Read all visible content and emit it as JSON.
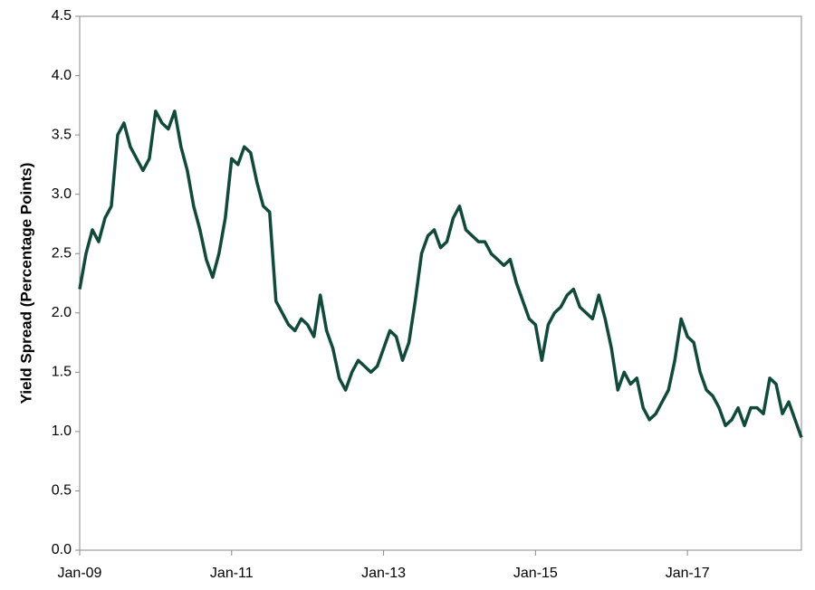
{
  "chart_data": {
    "type": "line",
    "y_label": "Yield Spread (Percentage Points)",
    "color": "#0f4a3b",
    "x": [
      "2009-01",
      "2009-02",
      "2009-03",
      "2009-04",
      "2009-05",
      "2009-06",
      "2009-07",
      "2009-08",
      "2009-09",
      "2009-10",
      "2009-11",
      "2009-12",
      "2010-01",
      "2010-02",
      "2010-03",
      "2010-04",
      "2010-05",
      "2010-06",
      "2010-07",
      "2010-08",
      "2010-09",
      "2010-10",
      "2010-11",
      "2010-12",
      "2011-01",
      "2011-02",
      "2011-03",
      "2011-04",
      "2011-05",
      "2011-06",
      "2011-07",
      "2011-08",
      "2011-09",
      "2011-10",
      "2011-11",
      "2011-12",
      "2012-01",
      "2012-02",
      "2012-03",
      "2012-04",
      "2012-05",
      "2012-06",
      "2012-07",
      "2012-08",
      "2012-09",
      "2012-10",
      "2012-11",
      "2012-12",
      "2013-01",
      "2013-02",
      "2013-03",
      "2013-04",
      "2013-05",
      "2013-06",
      "2013-07",
      "2013-08",
      "2013-09",
      "2013-10",
      "2013-11",
      "2013-12",
      "2014-01",
      "2014-02",
      "2014-03",
      "2014-04",
      "2014-05",
      "2014-06",
      "2014-07",
      "2014-08",
      "2014-09",
      "2014-10",
      "2014-11",
      "2014-12",
      "2015-01",
      "2015-02",
      "2015-03",
      "2015-04",
      "2015-05",
      "2015-06",
      "2015-07",
      "2015-08",
      "2015-09",
      "2015-10",
      "2015-11",
      "2015-12",
      "2016-01",
      "2016-02",
      "2016-03",
      "2016-04",
      "2016-05",
      "2016-06",
      "2016-07",
      "2016-08",
      "2016-09",
      "2016-10",
      "2016-11",
      "2016-12",
      "2017-01",
      "2017-02",
      "2017-03",
      "2017-04",
      "2017-05",
      "2017-06",
      "2017-07",
      "2017-08",
      "2017-09",
      "2017-10",
      "2017-11",
      "2017-12",
      "2018-01",
      "2018-02",
      "2018-03",
      "2018-04",
      "2018-05",
      "2018-06",
      "2018-07"
    ],
    "values": [
      2.2,
      2.5,
      2.7,
      2.6,
      2.8,
      2.9,
      3.5,
      3.6,
      3.4,
      3.3,
      3.2,
      3.3,
      3.7,
      3.6,
      3.55,
      3.7,
      3.4,
      3.2,
      2.9,
      2.7,
      2.45,
      2.3,
      2.5,
      2.8,
      3.3,
      3.25,
      3.4,
      3.35,
      3.1,
      2.9,
      2.85,
      2.1,
      2.0,
      1.9,
      1.85,
      1.95,
      1.9,
      1.8,
      2.15,
      1.85,
      1.7,
      1.45,
      1.35,
      1.5,
      1.6,
      1.55,
      1.5,
      1.55,
      1.7,
      1.85,
      1.8,
      1.6,
      1.75,
      2.1,
      2.5,
      2.65,
      2.7,
      2.55,
      2.6,
      2.8,
      2.9,
      2.7,
      2.65,
      2.6,
      2.6,
      2.5,
      2.45,
      2.4,
      2.45,
      2.25,
      2.1,
      1.95,
      1.9,
      1.6,
      1.9,
      2.0,
      2.05,
      2.15,
      2.2,
      2.05,
      2.0,
      1.95,
      2.15,
      1.95,
      1.7,
      1.35,
      1.5,
      1.4,
      1.45,
      1.2,
      1.1,
      1.15,
      1.25,
      1.35,
      1.6,
      1.95,
      1.8,
      1.75,
      1.5,
      1.35,
      1.3,
      1.2,
      1.05,
      1.1,
      1.2,
      1.05,
      1.2,
      1.2,
      1.15,
      1.45,
      1.4,
      1.15,
      1.25,
      1.1,
      0.95
    ],
    "xlim": [
      "2009-01",
      "2018-07"
    ],
    "xticks": [
      {
        "value": "2009-01",
        "label": "Jan-09"
      },
      {
        "value": "2011-01",
        "label": "Jan-11"
      },
      {
        "value": "2013-01",
        "label": "Jan-13"
      },
      {
        "value": "2015-01",
        "label": "Jan-15"
      },
      {
        "value": "2017-01",
        "label": "Jan-17"
      }
    ],
    "ylim": [
      0,
      4.5
    ],
    "yticks": [
      {
        "value": 0,
        "label": "0.0"
      },
      0.5,
      {
        "value": 1,
        "label": "1.0"
      },
      1.5,
      {
        "value": 2,
        "label": "2.0"
      },
      2.5,
      {
        "value": 3,
        "label": "3.0"
      },
      3.5,
      {
        "value": 4,
        "label": "4.0"
      },
      4.5
    ]
  }
}
